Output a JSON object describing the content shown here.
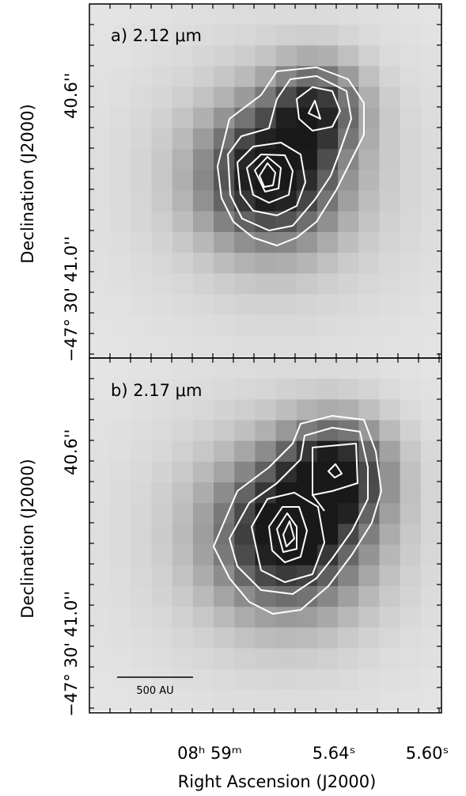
{
  "panels": [
    {
      "label": "a) 2.12 μm",
      "y_axis_title": "Declination (J2000)",
      "y_tick_labels": [
        "40.6''",
        "−47° 30' 41.0''"
      ]
    },
    {
      "label": "b) 2.17 μm",
      "y_axis_title": "Declination (J2000)",
      "y_tick_labels": [
        "40.6''",
        "−47° 30' 41.0''"
      ],
      "scale_bar": "500 AU"
    }
  ],
  "x_axis": {
    "tick_labels": [
      "08ʰ 59ᵐ",
      "5.64ˢ",
      "5.60ˢ"
    ],
    "title": "Right Ascension (J2000)"
  }
}
